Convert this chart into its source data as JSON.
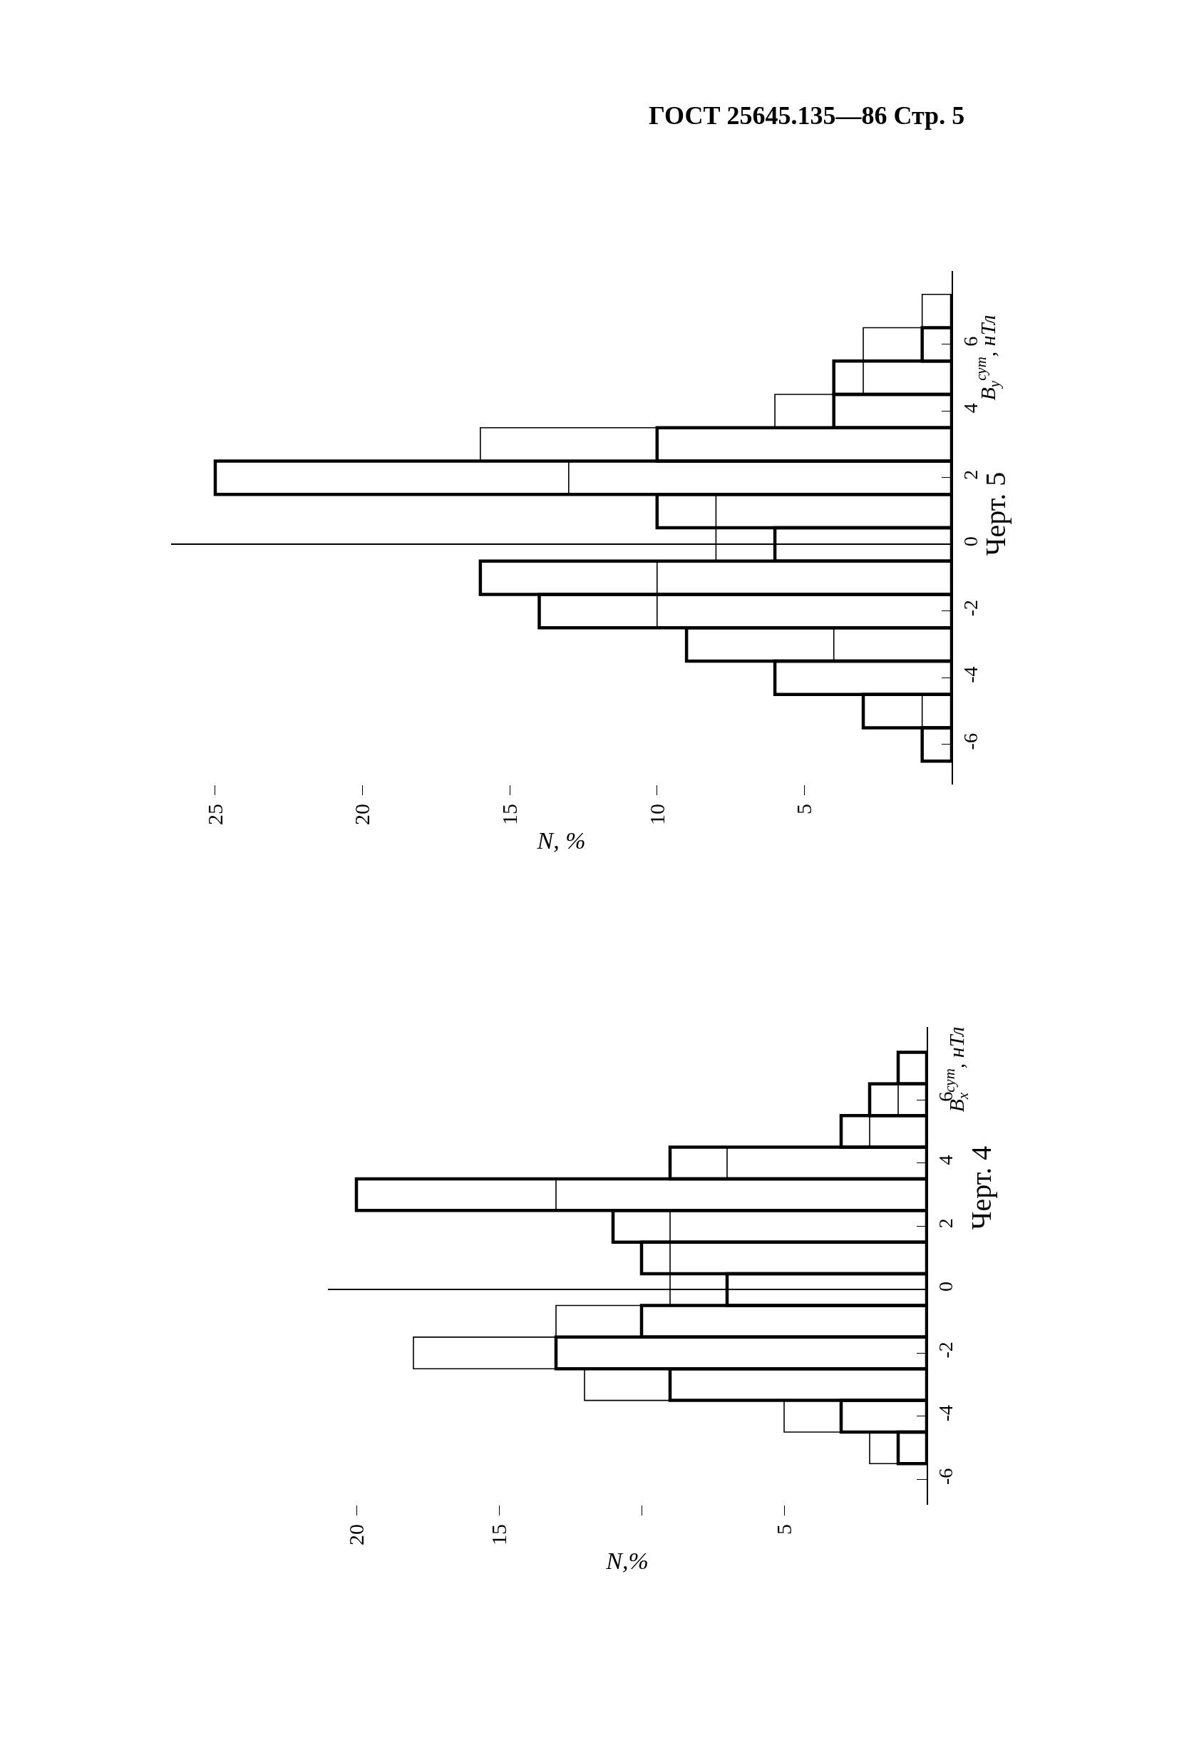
{
  "chart_data": [
    {
      "type": "histogram",
      "title": "Черт. 5",
      "xlabel": "N, %",
      "ylabel": "B$_{y}$$^{сут}$, нТл",
      "orientation": "horizontal",
      "annotations": [
        "ГОСТ 25645.135—86 Стр. 5"
      ],
      "bins": [
        -6.5,
        -5.5,
        -4.5,
        -3.5,
        -2.5,
        -1.5,
        -0.5,
        0.5,
        1.5,
        2.5,
        3.5,
        4.5,
        5.5,
        6.5,
        7.5
      ],
      "series": [
        {
          "color": "#000000",
          "values": [
            1,
            3,
            6,
            9,
            14,
            16,
            6,
            10,
            25,
            10,
            4,
            4,
            1,
            0
          ]
        },
        {
          "color": "#000000",
          "values": [
            null,
            1,
            0,
            4,
            10,
            10,
            8,
            8,
            13,
            16,
            6,
            3,
            3,
            1
          ]
        }
      ],
      "xlim": [
        26.5,
        0
      ],
      "xticks": [
        5,
        10,
        15,
        20,
        25
      ],
      "ylim": [
        -7.2,
        8.2
      ],
      "yticks": [
        -6,
        -4,
        -2,
        0,
        2,
        4,
        6
      ]
    },
    {
      "type": "histogram",
      "title": "Черт. 4",
      "xlabel": "N,%",
      "ylabel": "B$_{x}$$^{сут}$, нТл",
      "orientation": "horizontal",
      "bins": [
        -5.5,
        -4.5,
        -3.5,
        -2.5,
        -1.5,
        -0.5,
        0.5,
        1.5,
        2.5,
        3.5,
        4.5,
        5.5,
        6.5,
        7.5
      ],
      "series": [
        {
          "color": "#000000",
          "values": [
            1,
            3,
            9,
            13,
            10,
            7,
            10,
            11,
            20,
            9,
            3,
            2,
            1
          ]
        },
        {
          "color": "#000000",
          "values": [
            2,
            5,
            12,
            18,
            13,
            9,
            9,
            9,
            13,
            7,
            2,
            1,
            0
          ]
        }
      ],
      "xlim": [
        21,
        0
      ],
      "xticks": [
        5,
        {
          "value": 10,
          "label": null
        },
        15,
        20
      ],
      "ylim": [
        -6.8,
        8.3
      ],
      "yticks": [
        -6,
        -4,
        -2,
        0,
        2,
        4,
        6
      ]
    }
  ]
}
